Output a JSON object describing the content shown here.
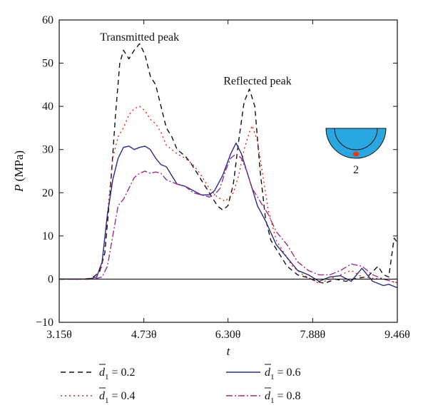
{
  "chart_data": {
    "type": "line",
    "xlabel": "t",
    "ylabel": "P (MPa)",
    "xlim": [
      3.15,
      9.46
    ],
    "ylim": [
      -10,
      60
    ],
    "x_ticks": [
      {
        "value": 3.15,
        "label": "3.15θ"
      },
      {
        "value": 4.73,
        "label": "4.73θ"
      },
      {
        "value": 6.3,
        "label": "6.30θ"
      },
      {
        "value": 7.88,
        "label": "7.88θ"
      },
      {
        "value": 9.46,
        "label": "9.46θ"
      }
    ],
    "y_ticks": [
      {
        "value": -10,
        "label": "−10"
      },
      {
        "value": 0,
        "label": "0"
      },
      {
        "value": 10,
        "label": "10"
      },
      {
        "value": 20,
        "label": "20"
      },
      {
        "value": 30,
        "label": "30"
      },
      {
        "value": 40,
        "label": "40"
      },
      {
        "value": 50,
        "label": "50"
      },
      {
        "value": 60,
        "label": "60"
      }
    ],
    "zero_line": 0,
    "annotations": [
      {
        "text": "Transmitted peak",
        "x": 4.65,
        "y": 55.2
      },
      {
        "text": "Reflected peak",
        "x": 6.85,
        "y": 45.1
      }
    ],
    "inset": {
      "label": "2",
      "fill": "#2aa7e0",
      "marker": "#e03a1e"
    },
    "legend_placement": "bottom",
    "series": [
      {
        "name": "= 0.2",
        "legend_symbol": "d",
        "legend_subscript": "1",
        "color": "#111111",
        "dash": "7,5",
        "x": [
          3.15,
          3.6,
          3.75,
          3.9,
          4.0,
          4.1,
          4.2,
          4.28,
          4.35,
          4.45,
          4.55,
          4.65,
          4.75,
          4.85,
          4.95,
          5.05,
          5.15,
          5.25,
          5.35,
          5.5,
          5.6,
          5.7,
          5.85,
          6.0,
          6.1,
          6.2,
          6.3,
          6.4,
          6.5,
          6.6,
          6.7,
          6.8,
          6.9,
          7.0,
          7.1,
          7.2,
          7.4,
          7.6,
          7.8,
          7.95,
          8.1,
          8.3,
          8.5,
          8.7,
          8.9,
          9.1,
          9.2,
          9.3,
          9.4,
          9.46
        ],
        "y": [
          0,
          0,
          0.2,
          1.5,
          6,
          20,
          38,
          50,
          53,
          51,
          53,
          54.5,
          52,
          47,
          45,
          40,
          35,
          33,
          30,
          28.5,
          27,
          25,
          22,
          19,
          17,
          16,
          17,
          22,
          32,
          41,
          44,
          40,
          25,
          14,
          9,
          7,
          3,
          1,
          0.3,
          -0.5,
          -1,
          0,
          -0.5,
          0.2,
          0.5,
          3,
          1,
          0.5,
          9.5,
          8.5
        ]
      },
      {
        "name": "= 0.4",
        "legend_symbol": "d",
        "legend_subscript": "1",
        "color": "#e2231a",
        "dash": "2,4",
        "x": [
          3.15,
          3.65,
          3.8,
          3.95,
          4.05,
          4.15,
          4.25,
          4.35,
          4.45,
          4.55,
          4.65,
          4.75,
          4.85,
          4.95,
          5.05,
          5.15,
          5.25,
          5.35,
          5.5,
          5.65,
          5.8,
          5.95,
          6.1,
          6.25,
          6.4,
          6.5,
          6.6,
          6.7,
          6.75,
          6.85,
          6.95,
          7.05,
          7.2,
          7.35,
          7.5,
          7.7,
          7.85,
          8.0,
          8.2,
          8.4,
          8.6,
          8.8,
          9.0,
          9.2,
          9.35,
          9.46
        ],
        "y": [
          0,
          0,
          0.3,
          3,
          15,
          28,
          33,
          35,
          38,
          39.5,
          40,
          39,
          37,
          36,
          34,
          31,
          30,
          29,
          28,
          26.5,
          24,
          21,
          19,
          18,
          20,
          24,
          30,
          34,
          35.5,
          32,
          24,
          16,
          9,
          6,
          3,
          1,
          0,
          -1,
          0,
          1,
          2,
          0.5,
          0.2,
          0,
          -0.5,
          -1
        ]
      },
      {
        "name": "= 0.6",
        "legend_symbol": "d",
        "legend_subscript": "1",
        "color": "#2b2b8c",
        "dash": "",
        "x": [
          3.15,
          3.7,
          3.85,
          3.95,
          4.05,
          4.15,
          4.25,
          4.35,
          4.45,
          4.55,
          4.65,
          4.75,
          4.85,
          4.95,
          5.05,
          5.15,
          5.25,
          5.35,
          5.5,
          5.65,
          5.8,
          5.95,
          6.05,
          6.2,
          6.35,
          6.45,
          6.55,
          6.65,
          6.75,
          6.85,
          7.0,
          7.2,
          7.4,
          7.6,
          7.8,
          8.0,
          8.2,
          8.4,
          8.6,
          8.8,
          8.9,
          9.0,
          9.1,
          9.2,
          9.3,
          9.46
        ],
        "y": [
          0,
          0,
          0.5,
          4,
          15,
          23,
          28,
          30.5,
          30.8,
          30,
          30.5,
          30.8,
          30,
          28,
          26.5,
          26,
          24,
          22,
          21.5,
          20.5,
          19.5,
          19.5,
          20.5,
          24,
          29,
          31.5,
          29,
          25,
          21,
          17,
          13.5,
          8,
          5,
          2,
          1,
          -0.5,
          0.5,
          0.8,
          -0.5,
          2.5,
          1,
          -0.5,
          -1,
          -1.5,
          -1.2,
          -2
        ]
      },
      {
        "name": "= 0.8",
        "legend_symbol": "d",
        "legend_subscript": "1",
        "color": "#9b2e8c",
        "dash": "9,3,2,3",
        "x": [
          3.15,
          3.8,
          3.95,
          4.05,
          4.15,
          4.25,
          4.35,
          4.45,
          4.55,
          4.65,
          4.75,
          4.85,
          4.95,
          5.05,
          5.15,
          5.25,
          5.35,
          5.5,
          5.65,
          5.8,
          5.95,
          6.05,
          6.15,
          6.25,
          6.35,
          6.45,
          6.55,
          6.65,
          6.75,
          6.9,
          7.05,
          7.2,
          7.4,
          7.6,
          7.8,
          8.0,
          8.2,
          8.4,
          8.6,
          8.8,
          9.0,
          9.2,
          9.35,
          9.46
        ],
        "y": [
          0,
          0,
          0.5,
          3,
          10,
          17,
          18.5,
          21,
          23.5,
          24.5,
          25,
          24.5,
          24.8,
          24.5,
          23,
          22.5,
          22,
          21.5,
          20,
          19.5,
          19,
          19.5,
          21,
          25,
          28,
          29,
          28,
          25,
          21,
          18,
          15,
          11,
          8,
          4,
          2,
          1,
          1,
          2,
          3.5,
          3,
          1,
          0,
          -0.5,
          -0.8
        ]
      }
    ]
  }
}
